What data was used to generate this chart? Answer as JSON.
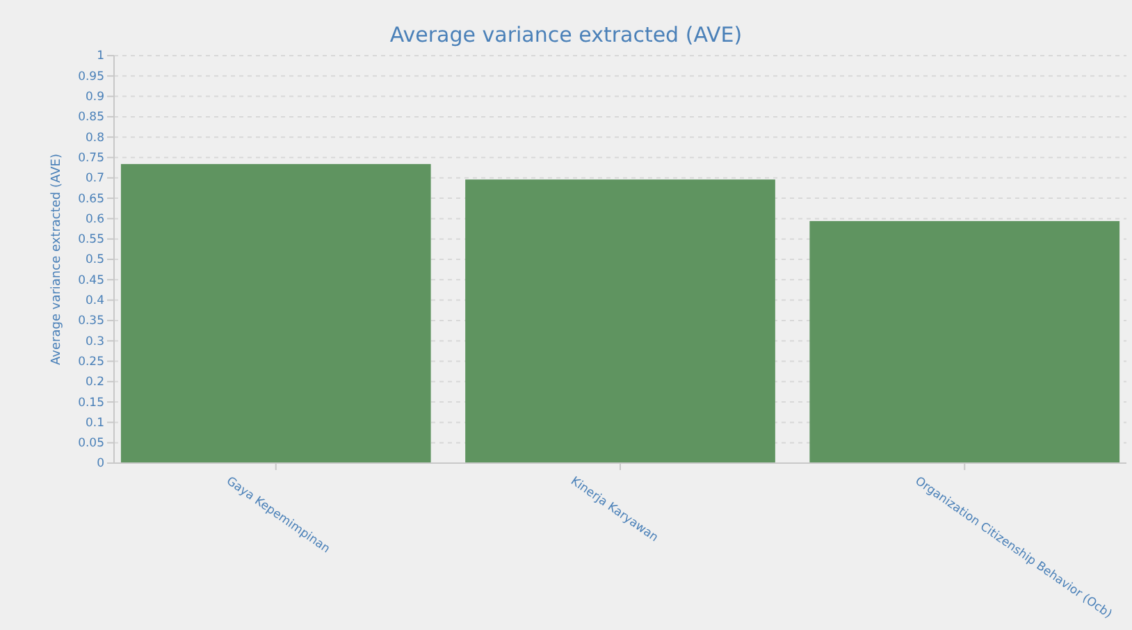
{
  "chart_data": {
    "type": "bar",
    "title": "Average variance extracted (AVE)",
    "ylabel": "Average variance extracted (AVE)",
    "categories": [
      "Gaya Kepemimpinan",
      "Kinerja Karyawan",
      "Organization Citizenship Behavior (Ocb)"
    ],
    "values": [
      0.734,
      0.696,
      0.594
    ],
    "color": "#5f9460",
    "ylim": [
      0,
      1
    ],
    "yticks": [
      0,
      0.05,
      0.1,
      0.15,
      0.2,
      0.25,
      0.3,
      0.35,
      0.4,
      0.45,
      0.5,
      0.55,
      0.6,
      0.65,
      0.7,
      0.75,
      0.8,
      0.85,
      0.9,
      0.95,
      1
    ],
    "grid": "y"
  }
}
